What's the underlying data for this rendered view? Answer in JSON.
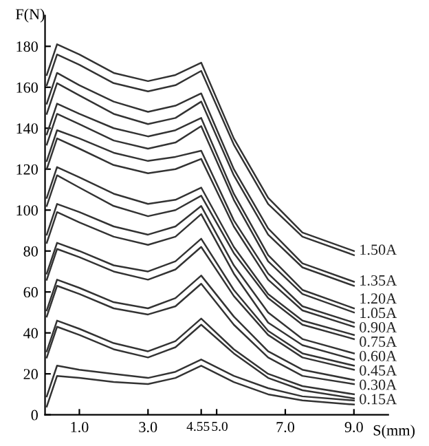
{
  "chart_data": {
    "type": "line",
    "xlabel": "S(mm)",
    "ylabel": "F(N)",
    "x": [
      0.05,
      0.35,
      1.0,
      2.0,
      3.0,
      3.8,
      4.55,
      5.5,
      6.5,
      7.5,
      9.0
    ],
    "xlim": [
      0,
      10
    ],
    "ylim": [
      0,
      195
    ],
    "xticks": [
      {
        "value": 1,
        "label": "1.0"
      },
      {
        "value": 3,
        "label": "3.0"
      },
      {
        "value": 4.55,
        "label": "4.55"
      },
      {
        "value": 5,
        "label": "5.0"
      },
      {
        "value": 7,
        "label": "7.0"
      },
      {
        "value": 9,
        "label": "9.0"
      }
    ],
    "yticks": [
      0,
      20,
      40,
      60,
      80,
      100,
      120,
      140,
      160,
      180
    ],
    "grid": false,
    "legend": false,
    "marker": "none",
    "line_style": "solid",
    "series": [
      {
        "name": "1.50A",
        "color": "#333333",
        "values": [
          166,
          181,
          176,
          167,
          163,
          166,
          172,
          135,
          106,
          89,
          80
        ]
      },
      {
        "color": "#333333",
        "values": [
          161,
          176,
          171,
          162,
          158,
          161,
          168,
          132,
          103,
          87,
          78
        ]
      },
      {
        "name": "1.35A",
        "color": "#333333",
        "values": [
          152,
          167,
          161,
          153,
          148,
          151,
          157,
          120,
          91,
          74,
          65
        ]
      },
      {
        "color": "#333333",
        "values": [
          147,
          162,
          156,
          147,
          142,
          145,
          153,
          117,
          88,
          72,
          63
        ]
      },
      {
        "name": "1.20A",
        "color": "#333333",
        "values": [
          137,
          152,
          147,
          140,
          136,
          139,
          145,
          108,
          78,
          61,
          52
        ]
      },
      {
        "color": "#333333",
        "values": [
          132,
          147,
          142,
          134,
          130,
          133,
          141,
          105,
          75,
          59,
          50
        ]
      },
      {
        "name": "1.05A",
        "color": "#333333",
        "values": [
          124,
          139,
          135,
          128,
          124,
          126,
          129,
          95,
          69,
          53,
          45
        ]
      },
      {
        "color": "#333333",
        "values": [
          120,
          135,
          130,
          122,
          118,
          120,
          125,
          92,
          66,
          51,
          43
        ]
      },
      {
        "name": "0.90A",
        "color": "#333333",
        "values": [
          106,
          121,
          116,
          108,
          103,
          105,
          111,
          82,
          59,
          46,
          39
        ]
      },
      {
        "color": "#333333",
        "values": [
          102,
          117,
          111,
          102,
          97,
          100,
          107,
          79,
          57,
          44,
          37
        ]
      },
      {
        "name": "0.75A",
        "color": "#333333",
        "values": [
          88,
          103,
          99,
          92,
          88,
          92,
          102,
          73,
          50,
          37,
          30
        ]
      },
      {
        "color": "#333333",
        "values": [
          84,
          99,
          94,
          87,
          83,
          87,
          98,
          69,
          45,
          34,
          27
        ]
      },
      {
        "name": "0.60A",
        "color": "#333333",
        "values": [
          69,
          84,
          80,
          73,
          70,
          75,
          86,
          61,
          41,
          30,
          24
        ]
      },
      {
        "color": "#333333",
        "values": [
          66,
          81,
          77,
          70,
          66,
          71,
          82,
          58,
          39,
          28,
          22
        ]
      },
      {
        "name": "0.45A",
        "color": "#333333",
        "values": [
          51,
          66,
          62,
          55,
          52,
          57,
          68,
          48,
          31,
          22,
          17
        ]
      },
      {
        "color": "#333333",
        "values": [
          48,
          63,
          59,
          52,
          49,
          53,
          64,
          44,
          28,
          19,
          15
        ]
      },
      {
        "name": "0.30A",
        "color": "#333333",
        "values": [
          31,
          46,
          42,
          35,
          31,
          36,
          47,
          32,
          20,
          14,
          10
        ]
      },
      {
        "color": "#333333",
        "values": [
          28,
          43,
          39,
          32,
          28,
          33,
          44,
          30,
          18,
          12,
          8
        ]
      },
      {
        "name": "0.15A",
        "color": "#333333",
        "values": [
          9,
          24,
          22,
          20,
          18,
          21,
          27,
          19,
          13,
          9,
          7
        ]
      },
      {
        "color": "#333333",
        "values": [
          4,
          19,
          18,
          16,
          15,
          18,
          24,
          16,
          10,
          7,
          5
        ]
      }
    ]
  }
}
